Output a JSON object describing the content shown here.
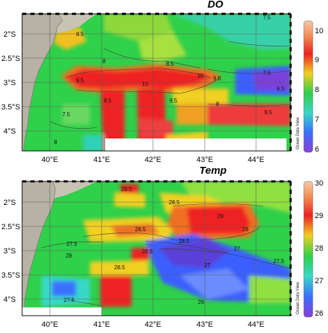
{
  "chart_data": [
    {
      "type": "heatmap",
      "title": "DO",
      "x_ticks": [
        "40°E",
        "41°E",
        "42°E",
        "43°E",
        "44°E"
      ],
      "y_ticks": [
        "2°S",
        "2.5°S",
        "3°S",
        "3.5°S",
        "4°S"
      ],
      "colorbar": {
        "ticks": [
          "10",
          "9",
          "8",
          "7",
          "6"
        ],
        "range": [
          6,
          10
        ]
      },
      "contour_labels": [
        "8.5",
        "8",
        "9.5",
        "10",
        "8.5",
        "10",
        "9.5",
        "8.5",
        "9.5",
        "7.5",
        "8",
        "7.5",
        "6.5",
        "9.5",
        "7.5",
        "8"
      ],
      "watermark": "Ocean Data View",
      "colors": {
        "low": "#6a3fc8",
        "mid_low": "#3aa0ff",
        "mid": "#2fd04a",
        "mid_high": "#f0d020",
        "high": "#ee2222",
        "land": "#b8b2a6"
      }
    },
    {
      "type": "heatmap",
      "title": "Temp",
      "x_ticks": [
        "40°E",
        "41°E",
        "42°E",
        "43°E",
        "44°E"
      ],
      "y_ticks": [
        "2°S",
        "2.5°S",
        "3°S",
        "3.5°S",
        "4°S"
      ],
      "colorbar": {
        "ticks": [
          "30",
          "29",
          "28",
          "27",
          "26"
        ],
        "range": [
          26,
          30
        ]
      },
      "contour_labels": [
        "28.5",
        "28.5",
        "29",
        "28",
        "28.5",
        "28.5",
        "27.5",
        "28",
        "28.5",
        "28.5",
        "27",
        "27",
        "27.5",
        "27.5",
        "26"
      ],
      "watermark": "Ocean Data View",
      "colors": {
        "low": "#6a3fc8",
        "mid_low": "#3aa0ff",
        "mid": "#2fd04a",
        "mid_high": "#f0d020",
        "high": "#ee2222",
        "land": "#b8b2a6"
      }
    }
  ]
}
